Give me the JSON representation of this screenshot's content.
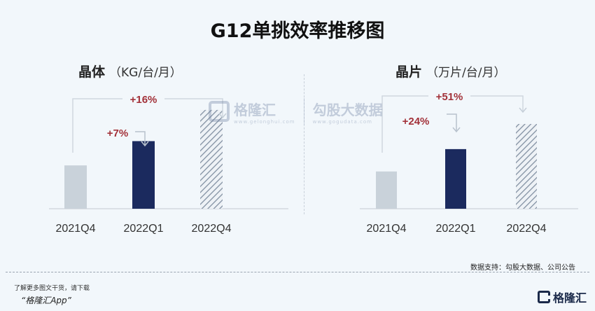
{
  "title": "G12单挑效率推移图",
  "chart_data": [
    {
      "type": "bar",
      "title": "晶体",
      "unit": "（KG/台/月）",
      "categories": [
        "2021Q4",
        "2022Q1",
        "2022Q4"
      ],
      "values": [
        100,
        107,
        116
      ],
      "annotations": [
        "+7%",
        "+16%"
      ],
      "colors": [
        "#c9d2da",
        "#1b2a5e",
        "hatched"
      ]
    },
    {
      "type": "bar",
      "title": "晶片",
      "unit": "（万片/台/月）",
      "categories": [
        "2021Q4",
        "2022Q1",
        "2022Q4"
      ],
      "values": [
        100,
        124,
        151
      ],
      "annotations": [
        "+24%",
        "+51%"
      ],
      "colors": [
        "#c9d2da",
        "#1b2a5e",
        "hatched"
      ]
    }
  ],
  "watermark": {
    "brand": "格隆汇",
    "brand_sub": "www.gelonghui.com",
    "partner": "勾股大数据",
    "partner_sub": "www.gogudata.com"
  },
  "source": "数据支持：勾股大数据、公司公告",
  "footer": {
    "line1": "了解更多图文干货，请下载",
    "line2": "“格隆汇App”",
    "logo_text": "格隆汇"
  }
}
